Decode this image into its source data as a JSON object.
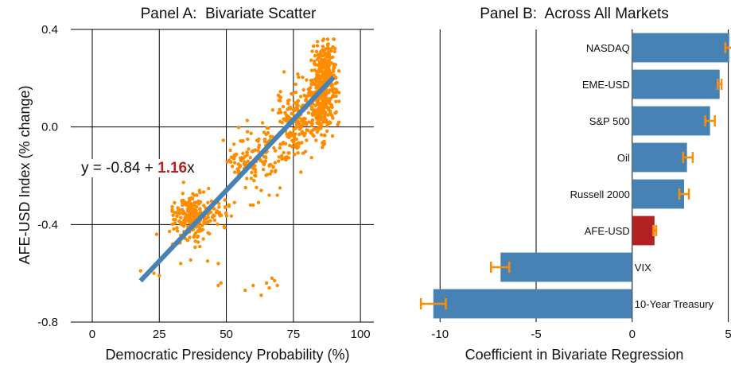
{
  "colors": {
    "scatter_point": "#ff8c00",
    "fit_line": "#4682b4",
    "bar": "#4682b4",
    "bar_highlight": "#b22222",
    "error_bar": "#ff8c00",
    "grid": "#000000",
    "coefficient_text": "#b22222"
  },
  "chart_data": [
    {
      "type": "scatter",
      "title": "Panel A:  Bivariate Scatter",
      "xlabel": "Democratic Presidency Probability (%)",
      "ylabel": "AFE-USD Index (% change)",
      "xlim": [
        -8,
        105
      ],
      "ylim": [
        -0.8,
        0.4
      ],
      "xticks": [
        0,
        25,
        50,
        75,
        100
      ],
      "xtick_labels": [
        "0",
        "25",
        "50",
        "75",
        "100"
      ],
      "yticks": [
        -0.8,
        -0.4,
        0.0,
        0.4
      ],
      "ytick_labels": [
        "-0.8",
        "-0.4",
        "0.0",
        "0.4"
      ],
      "grid": true,
      "fit_line": {
        "intercept": -0.84,
        "slope": 1.16,
        "x_range": [
          18,
          90
        ]
      },
      "annotation": {
        "prefix": "y = -0.84 + ",
        "coefficient": "1.16",
        "suffix": "x"
      },
      "clusters": [
        {
          "x_mean": 37,
          "x_sd": 3.5,
          "y_mean": -0.38,
          "y_sd": 0.05,
          "n": 200
        },
        {
          "x_mean": 47,
          "x_sd": 3.0,
          "y_mean": -0.36,
          "y_sd": 0.03,
          "n": 35
        },
        {
          "x_mean": 58,
          "x_sd": 3.5,
          "y_mean": -0.13,
          "y_sd": 0.05,
          "n": 80
        },
        {
          "x_mean": 66,
          "x_sd": 3.0,
          "y_mean": -0.09,
          "y_sd": 0.06,
          "n": 60
        },
        {
          "x_mean": 76,
          "x_sd": 3.5,
          "y_mean": 0.02,
          "y_sd": 0.07,
          "n": 160
        },
        {
          "x_mean": 85,
          "x_sd": 3.0,
          "y_mean": 0.11,
          "y_sd": 0.08,
          "n": 330
        },
        {
          "x_mean": 87,
          "x_sd": 2.0,
          "y_mean": 0.24,
          "y_sd": 0.05,
          "n": 150
        }
      ],
      "points": [
        [
          18,
          -0.59
        ],
        [
          20,
          -0.61
        ],
        [
          23,
          -0.6
        ],
        [
          24,
          -0.44
        ],
        [
          25,
          -0.61
        ],
        [
          30,
          -0.48
        ],
        [
          33,
          -0.56
        ],
        [
          43,
          -0.55
        ],
        [
          47,
          -0.56
        ],
        [
          48,
          -0.64
        ],
        [
          38,
          -0.28
        ],
        [
          40,
          -0.26
        ],
        [
          39,
          -0.31
        ],
        [
          53,
          -0.31
        ],
        [
          59,
          -0.32
        ],
        [
          60,
          -0.32
        ],
        [
          62,
          -0.31
        ],
        [
          63,
          -0.26
        ],
        [
          69,
          -0.28
        ],
        [
          70,
          -0.25
        ],
        [
          47,
          -0.65
        ],
        [
          57,
          -0.67
        ],
        [
          60,
          -0.65
        ],
        [
          65,
          -0.64
        ],
        [
          66,
          -0.66
        ],
        [
          67,
          -0.62
        ],
        [
          68,
          -0.63
        ],
        [
          69,
          -0.65
        ],
        [
          63,
          -0.69
        ],
        [
          66,
          -0.28
        ],
        [
          84,
          0.35
        ],
        [
          86,
          0.33
        ],
        [
          88,
          0.34
        ],
        [
          90,
          0.36
        ],
        [
          82,
          0.31
        ]
      ]
    },
    {
      "type": "bar",
      "orientation": "horizontal",
      "title": "Panel B:  Across All Markets",
      "xlabel": "Coefficient in Bivariate Regression",
      "xlim": [
        -11.5,
        5.1
      ],
      "xticks": [
        -10,
        -5,
        0,
        5
      ],
      "xtick_labels": [
        "-10",
        "-5",
        "0",
        "5"
      ],
      "grid": true,
      "categories": [
        "NASDAQ",
        "EME-USD",
        "S&P 500",
        "Oil",
        "Russell 2000",
        "AFE-USD",
        "VIX",
        "10-Year Treasury"
      ],
      "values": [
        5.05,
        4.55,
        4.05,
        2.85,
        2.7,
        1.16,
        -6.85,
        -10.35
      ],
      "error_low": [
        4.85,
        4.45,
        3.8,
        2.65,
        2.45,
        1.1,
        -7.35,
        -11.0
      ],
      "error_high": [
        5.25,
        4.65,
        4.3,
        3.15,
        2.95,
        1.25,
        -6.4,
        -9.7
      ],
      "highlight": "AFE-USD"
    }
  ]
}
